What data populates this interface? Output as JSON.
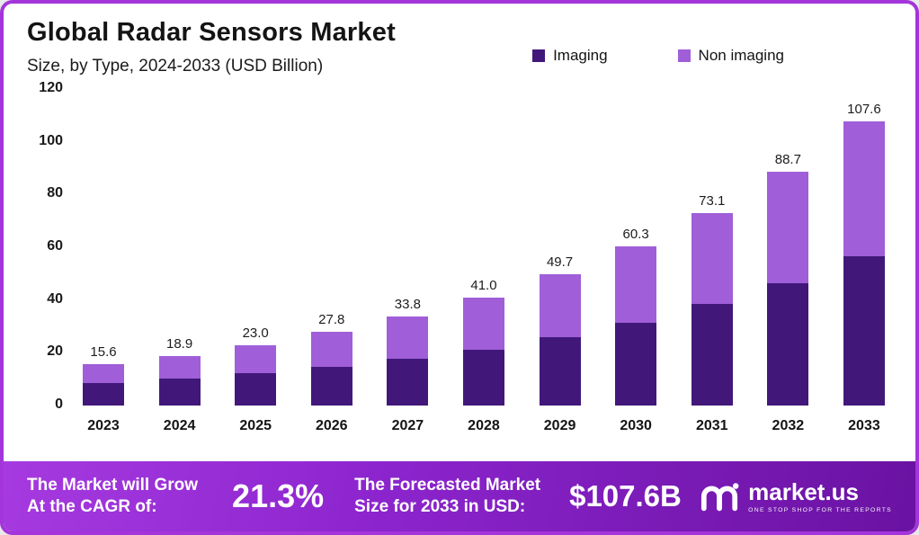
{
  "header": {
    "title": "Global Radar Sensors Market",
    "subtitle": "Size, by Type, 2024-2033 (USD Billion)"
  },
  "legend": [
    {
      "label": "Imaging",
      "color": "#41187a"
    },
    {
      "label": "Non imaging",
      "color": "#a05ed8"
    }
  ],
  "chart_data": {
    "type": "bar",
    "stacked": true,
    "title": "Global Radar Sensors Market Size, by Type, 2024-2033 (USD Billion)",
    "categories": [
      "2023",
      "2024",
      "2025",
      "2026",
      "2027",
      "2028",
      "2029",
      "2030",
      "2031",
      "2032",
      "2033"
    ],
    "series": [
      {
        "name": "Imaging",
        "color": "#41187a",
        "values": [
          8.6,
          10.2,
          12.2,
          14.6,
          17.9,
          21.2,
          25.9,
          31.4,
          38.4,
          46.4,
          56.6
        ]
      },
      {
        "name": "Non imaging",
        "color": "#a05ed8",
        "values": [
          7.0,
          8.7,
          10.8,
          13.2,
          15.9,
          19.8,
          23.8,
          28.9,
          34.7,
          42.3,
          51.0
        ]
      }
    ],
    "totals": [
      15.6,
      18.9,
      23.0,
      27.8,
      33.8,
      41.0,
      49.7,
      60.3,
      73.1,
      88.7,
      107.6
    ],
    "ylim": [
      0,
      120
    ],
    "yticks": [
      0,
      20,
      40,
      60,
      80,
      100,
      120
    ],
    "grid": false,
    "legend_position": "top"
  },
  "footer": {
    "cagr_label_line1": "The Market will Grow",
    "cagr_label_line2": "At the CAGR of:",
    "cagr_value": "21.3%",
    "forecast_label_line1": "The Forecasted Market",
    "forecast_label_line2": "Size for 2033 in USD:",
    "forecast_value": "$107.6B",
    "brand": "market.us",
    "brand_tagline": "ONE STOP SHOP FOR THE REPORTS"
  }
}
